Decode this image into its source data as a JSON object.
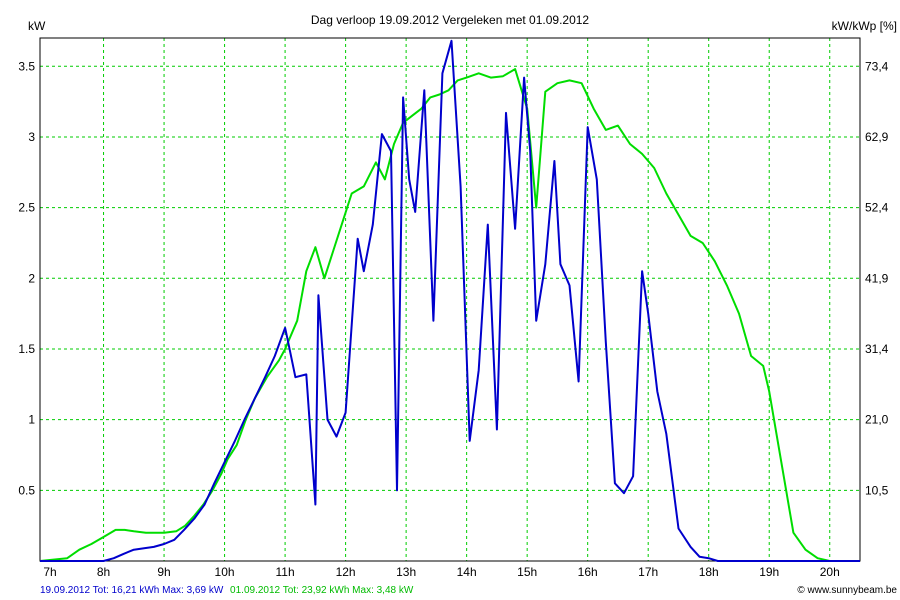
{
  "chart_data": {
    "type": "line",
    "title": "Dag  verloop 19.09.2012   Vergeleken met 01.09.2012",
    "left_unit": "kW",
    "right_unit": "kW/kWp [%]",
    "grid": true,
    "x_ticks": [
      "7h",
      "8h",
      "9h",
      "10h",
      "11h",
      "12h",
      "13h",
      "14h",
      "15h",
      "16h",
      "17h",
      "18h",
      "19h",
      "20h"
    ],
    "y_ticks": [
      "0.5",
      "1",
      "1.5",
      "2",
      "2.5",
      "3",
      "3.5"
    ],
    "y_tick_values": [
      0.5,
      1,
      1.5,
      2,
      2.5,
      3,
      3.5
    ],
    "right_ticks": [
      "10,5",
      "21,0",
      "31,4",
      "41,9",
      "52,4",
      "62,9",
      "73,4"
    ],
    "xlim": [
      6.95,
      20.5
    ],
    "ylim": [
      0,
      3.7
    ],
    "series": [
      {
        "color": "#0000cc",
        "x": [
          6.95,
          7.5,
          8.0,
          8.17,
          8.33,
          8.5,
          8.67,
          8.83,
          9.0,
          9.17,
          9.33,
          9.5,
          9.67,
          9.83,
          10.0,
          10.17,
          10.33,
          10.5,
          10.67,
          10.83,
          11.0,
          11.05,
          11.17,
          11.35,
          11.5,
          11.55,
          11.7,
          11.85,
          12.0,
          12.2,
          12.3,
          12.45,
          12.6,
          12.75,
          12.85,
          12.95,
          13.05,
          13.15,
          13.3,
          13.45,
          13.6,
          13.75,
          13.9,
          14.05,
          14.2,
          14.35,
          14.5,
          14.65,
          14.8,
          14.95,
          15.05,
          15.15,
          15.3,
          15.45,
          15.55,
          15.7,
          15.85,
          16.0,
          16.15,
          16.3,
          16.45,
          16.6,
          16.75,
          16.9,
          17.0,
          17.15,
          17.3,
          17.5,
          17.7,
          17.85,
          18.0,
          18.15,
          18.3,
          18.45,
          18.6,
          18.75,
          18.9,
          19.1,
          19.3,
          19.5,
          19.7,
          20.0,
          20.5
        ],
        "y": [
          0.0,
          0.0,
          0.0,
          0.02,
          0.05,
          0.08,
          0.09,
          0.1,
          0.12,
          0.15,
          0.22,
          0.3,
          0.4,
          0.55,
          0.7,
          0.85,
          1.0,
          1.15,
          1.3,
          1.45,
          1.65,
          1.55,
          1.3,
          1.32,
          0.4,
          1.88,
          1.0,
          0.88,
          1.05,
          2.28,
          2.05,
          2.38,
          3.02,
          2.9,
          0.5,
          3.28,
          2.7,
          2.47,
          3.33,
          1.7,
          3.45,
          3.68,
          2.65,
          0.85,
          1.35,
          2.38,
          0.93,
          3.17,
          2.35,
          3.42,
          2.9,
          1.7,
          2.1,
          2.83,
          2.1,
          1.95,
          1.27,
          3.07,
          2.7,
          1.55,
          0.55,
          0.48,
          0.6,
          2.05,
          1.75,
          1.2,
          0.9,
          0.23,
          0.1,
          0.03,
          0.02,
          0.0,
          0.0,
          0.0,
          0.0,
          0.0,
          0.0,
          0.0,
          0.0,
          0.0,
          0.0,
          0.0,
          0.0
        ]
      },
      {
        "color": "#00dd00",
        "x": [
          6.95,
          7.4,
          7.6,
          7.8,
          8.0,
          8.2,
          8.35,
          8.5,
          8.7,
          9.0,
          9.2,
          9.35,
          9.5,
          9.65,
          9.8,
          9.95,
          10.05,
          10.2,
          10.35,
          10.5,
          10.7,
          10.9,
          11.0,
          11.2,
          11.35,
          11.5,
          11.65,
          11.8,
          11.95,
          12.1,
          12.3,
          12.5,
          12.65,
          12.8,
          12.95,
          13.1,
          13.25,
          13.4,
          13.55,
          13.7,
          13.85,
          14.0,
          14.2,
          14.4,
          14.6,
          14.8,
          15.0,
          15.15,
          15.3,
          15.5,
          15.7,
          15.9,
          16.1,
          16.3,
          16.5,
          16.7,
          16.9,
          17.1,
          17.3,
          17.5,
          17.7,
          17.9,
          18.1,
          18.3,
          18.5,
          18.7,
          18.9,
          19.0,
          19.2,
          19.4,
          19.6,
          19.8,
          20.0,
          20.2,
          20.5
        ],
        "y": [
          0.0,
          0.02,
          0.08,
          0.12,
          0.17,
          0.22,
          0.22,
          0.21,
          0.2,
          0.2,
          0.21,
          0.25,
          0.32,
          0.4,
          0.5,
          0.62,
          0.72,
          0.82,
          1.0,
          1.15,
          1.3,
          1.42,
          1.5,
          1.7,
          2.05,
          2.22,
          2.0,
          2.2,
          2.4,
          2.6,
          2.65,
          2.82,
          2.7,
          2.95,
          3.1,
          3.15,
          3.2,
          3.28,
          3.3,
          3.33,
          3.4,
          3.42,
          3.45,
          3.42,
          3.43,
          3.48,
          3.2,
          2.5,
          3.32,
          3.38,
          3.4,
          3.38,
          3.2,
          3.05,
          3.08,
          2.95,
          2.88,
          2.78,
          2.6,
          2.45,
          2.3,
          2.25,
          2.12,
          1.95,
          1.75,
          1.45,
          1.38,
          1.2,
          0.7,
          0.2,
          0.08,
          0.02,
          0.0,
          0.0,
          0.0
        ]
      }
    ]
  },
  "footer": {
    "legend_blue": "19.09.2012 Tot: 16,21 kWh Max: 3,69 kW",
    "legend_green": "01.09.2012 Tot: 23,92 kWh Max: 3,48 kW",
    "copyright": "© www.sunnybeam.be"
  },
  "colors": {
    "grid": "#00cc00",
    "frame": "#000000",
    "legend_blue": "#0000cc",
    "legend_green": "#00bb00"
  }
}
